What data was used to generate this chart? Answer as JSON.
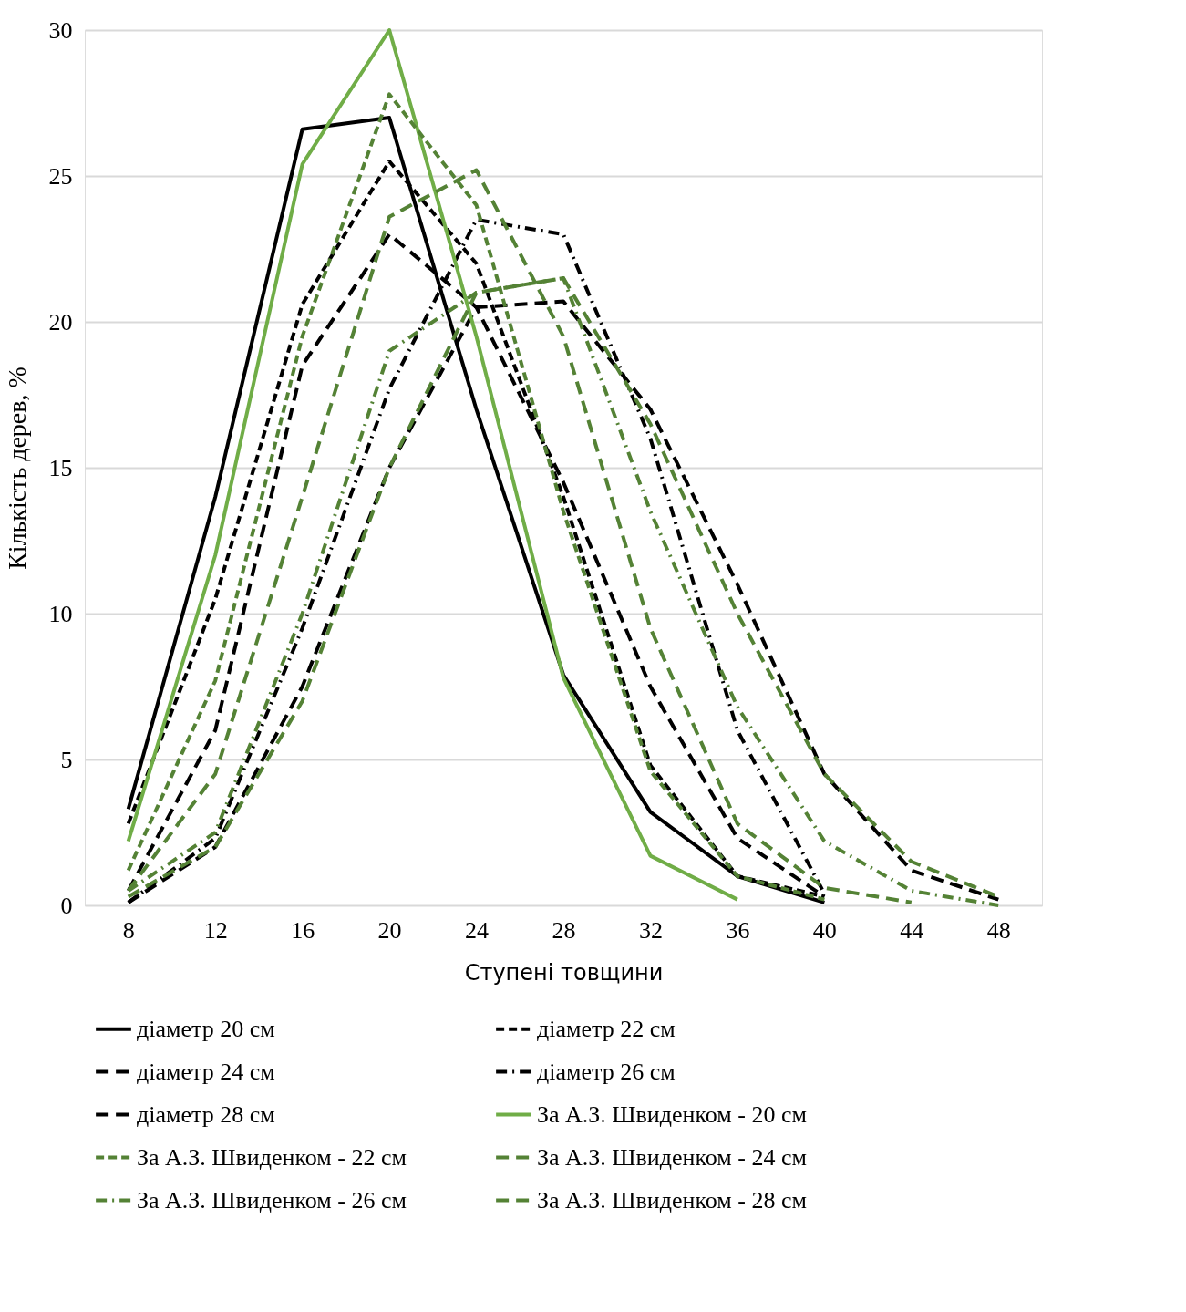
{
  "chart_data": {
    "type": "line",
    "xlabel": "Ступені товщини",
    "ylabel": "Кількість дерев, %",
    "x": [
      8,
      12,
      16,
      20,
      24,
      28,
      32,
      36,
      40,
      44,
      48
    ],
    "xlim": [
      6,
      50
    ],
    "xticks": [
      8,
      12,
      16,
      20,
      24,
      28,
      32,
      36,
      40,
      44,
      48
    ],
    "ylim": [
      0,
      30
    ],
    "yticks": [
      0,
      5,
      10,
      15,
      20,
      25,
      30
    ],
    "grid": "y",
    "legend": "bottom",
    "marker": "none",
    "series": [
      {
        "name": "діаметр 20 см",
        "color": "#000000",
        "line_style": "solid",
        "values": [
          3.3,
          14.0,
          26.6,
          27.0,
          17.0,
          7.9,
          3.2,
          1.0,
          0.1,
          null,
          null
        ]
      },
      {
        "name": "діаметр 22 см",
        "color": "#000000",
        "line_style": "dashed",
        "values": [
          2.8,
          10.5,
          20.6,
          25.5,
          22.0,
          14.0,
          4.8,
          1.0,
          0.3,
          null,
          null
        ]
      },
      {
        "name": "діаметр 24 см",
        "color": "#000000",
        "line_style": "longdash",
        "values": [
          0.5,
          6.0,
          18.5,
          23.0,
          20.5,
          14.5,
          7.5,
          2.3,
          0.3,
          null,
          null
        ]
      },
      {
        "name": "діаметр 26 см",
        "color": "#000000",
        "line_style": "dashdot",
        "values": [
          0.1,
          2.3,
          9.5,
          17.7,
          23.5,
          23.0,
          16.0,
          6.0,
          0.4,
          null,
          null
        ]
      },
      {
        "name": "діаметр 28 см",
        "color": "#000000",
        "line_style": "longdash",
        "values": [
          0.1,
          2.0,
          7.5,
          15.0,
          20.5,
          20.7,
          17.0,
          11.0,
          4.5,
          1.2,
          0.2
        ]
      },
      {
        "name": "За А.З. Швиденком - 20 см",
        "color": "#70ad47",
        "line_style": "solid",
        "values": [
          2.2,
          12.0,
          25.4,
          30.0,
          19.5,
          7.8,
          1.7,
          0.2,
          null,
          null,
          null
        ]
      },
      {
        "name": "За А.З. Швиденком - 22 см",
        "color": "#548235",
        "line_style": "dashed",
        "values": [
          1.2,
          7.7,
          19.5,
          27.8,
          24.0,
          13.5,
          4.6,
          1.0,
          0.2,
          null,
          null
        ]
      },
      {
        "name": "За А.З. Швиденком - 24 см",
        "color": "#548235",
        "line_style": "longdash",
        "values": [
          0.5,
          4.5,
          14.0,
          23.6,
          25.2,
          19.5,
          9.5,
          2.8,
          0.6,
          0.1,
          null
        ]
      },
      {
        "name": "За А.З. Швиденком - 26 см",
        "color": "#548235",
        "line_style": "dashdot",
        "values": [
          0.5,
          2.5,
          10.0,
          19.0,
          21.0,
          21.5,
          13.5,
          6.8,
          2.2,
          0.5,
          0.0
        ]
      },
      {
        "name": "За А.З. Швиденком - 28 см",
        "color": "#548235",
        "line_style": "longdash",
        "values": [
          0.3,
          2.0,
          7.0,
          15.0,
          21.0,
          21.5,
          16.5,
          10.0,
          4.5,
          1.5,
          0.3
        ]
      }
    ]
  }
}
